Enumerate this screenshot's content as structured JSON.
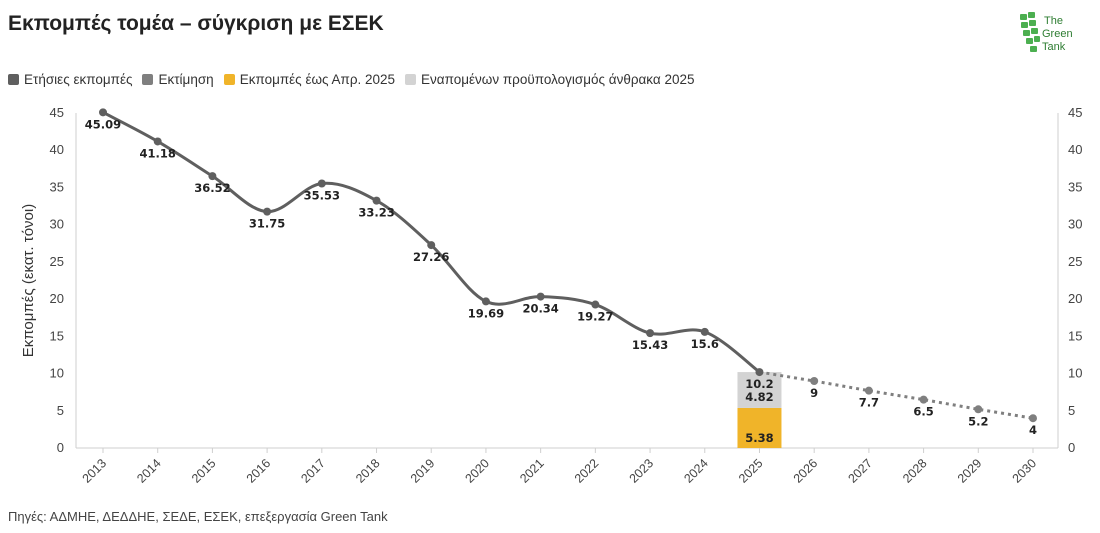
{
  "title": "Εκπομπές τομέα – σύγκριση με ΕΣΕΚ",
  "logo": {
    "line1": "The",
    "line2": "Green",
    "line3": "Tank"
  },
  "legend": [
    {
      "label": "Ετήσιες εκπομπές",
      "color": "#5f5f5f"
    },
    {
      "label": "Εκτίμηση",
      "color": "#7f7f7f"
    },
    {
      "label": "Εκπομπές έως Απρ. 2025",
      "color": "#f0b429"
    },
    {
      "label": "Εναπομένων προϋπολογισμός άνθρακα 2025",
      "color": "#d3d3d3"
    }
  ],
  "source": "Πηγές: ΑΔΜΗΕ, ΔΕΔΔΗΕ, ΣΕΔΕ, ΕΣΕΚ, επεξεργασία Green Tank",
  "colors": {
    "line": "#5f5f5f",
    "estimate": "#7f7f7f",
    "bar_actual": "#f0b429",
    "bar_remaining": "#d3d3d3",
    "grid": "#e0e0e0"
  },
  "chart_data": {
    "type": "line",
    "ylabel": "Εκπομπές (εκατ. τόνοι)",
    "ylim": [
      0,
      45
    ],
    "yticks": [
      0,
      5,
      10,
      15,
      20,
      25,
      30,
      35,
      40,
      45
    ],
    "categories": [
      "2013",
      "2014",
      "2015",
      "2016",
      "2017",
      "2018",
      "2019",
      "2020",
      "2021",
      "2022",
      "2023",
      "2024",
      "2025",
      "2026",
      "2027",
      "2028",
      "2029",
      "2030"
    ],
    "series": [
      {
        "name": "Ετήσιες εκπομπές",
        "style": "solid",
        "x": [
          "2013",
          "2014",
          "2015",
          "2016",
          "2017",
          "2018",
          "2019",
          "2020",
          "2021",
          "2022",
          "2023",
          "2024",
          "2025"
        ],
        "values": [
          45.09,
          41.18,
          36.52,
          31.75,
          35.53,
          33.23,
          27.26,
          19.69,
          20.34,
          19.27,
          15.43,
          15.6,
          10.2
        ]
      },
      {
        "name": "Εκτίμηση",
        "style": "dotted",
        "x": [
          "2025",
          "2026",
          "2027",
          "2028",
          "2029",
          "2030"
        ],
        "values": [
          10.2,
          9,
          7.7,
          6.5,
          5.2,
          4
        ]
      }
    ],
    "stacked_bar": {
      "x": "2025",
      "segments": [
        {
          "name": "Εκπομπές έως Απρ. 2025",
          "value": 5.38
        },
        {
          "name": "Εναπομένων προϋπολογισμός άνθρακα 2025",
          "value": 4.82
        }
      ]
    },
    "point_labels": {
      "2013": "45.09",
      "2014": "41.18",
      "2015": "36.52",
      "2016": "31.75",
      "2017": "35.53",
      "2018": "33.23",
      "2019": "27.26",
      "2020": "19.69",
      "2021": "20.34",
      "2022": "19.27",
      "2023": "15.43",
      "2024": "15.6",
      "2025": "10.2",
      "2026": "9",
      "2027": "7.7",
      "2028": "6.5",
      "2029": "5.2",
      "2030": "4"
    },
    "bar_labels": [
      "4.82",
      "5.38"
    ]
  }
}
